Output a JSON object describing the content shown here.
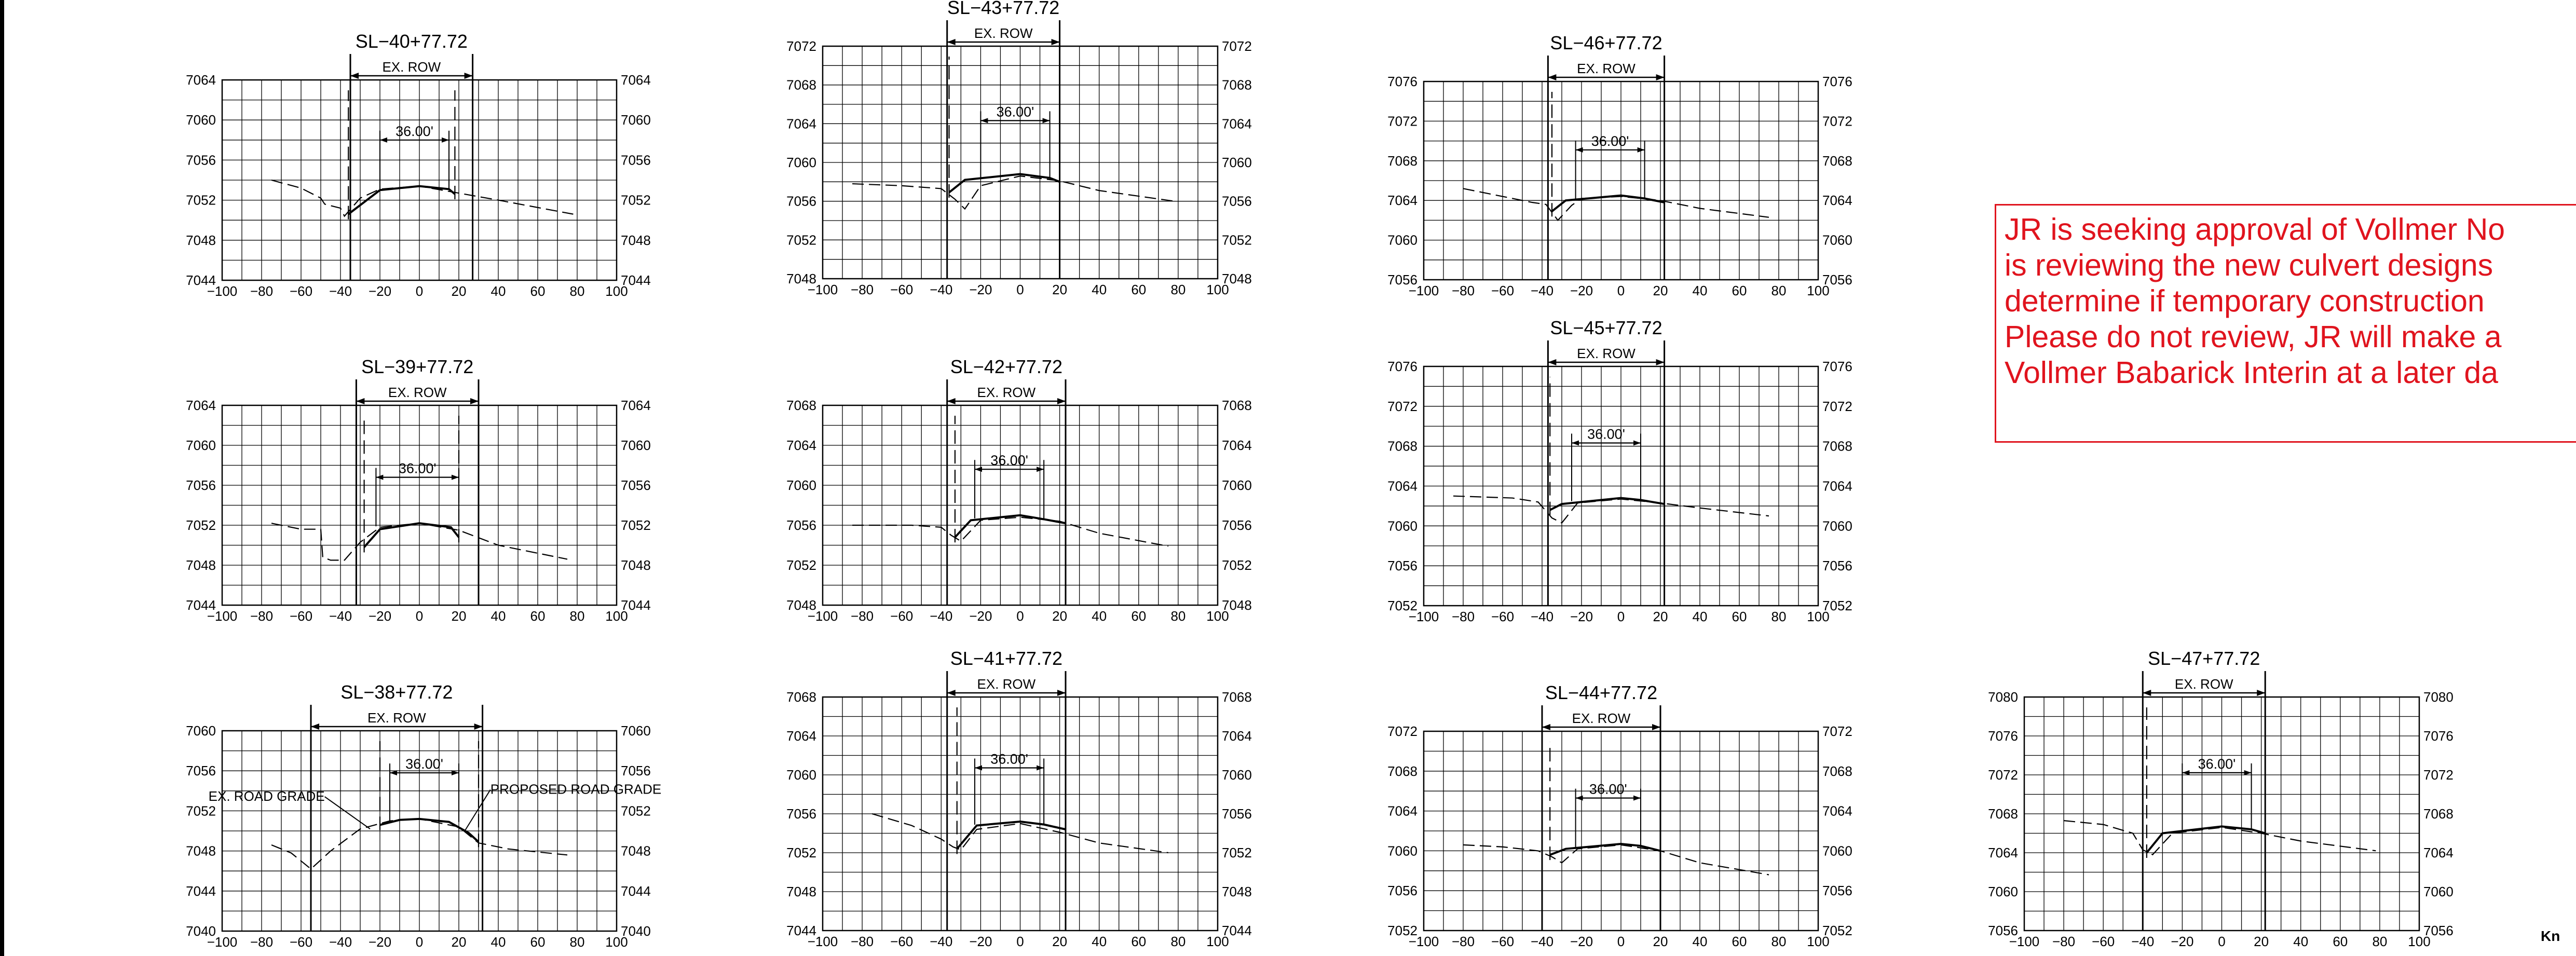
{
  "sheet": {
    "note_text": "JR is seeking approval of Vollmer No\nis reviewing the new culvert designs\ndetermine if temporary construction\nPlease do not review, JR will make a\nVollmer Babarick Interin at a later da",
    "corner_label": "Kn",
    "colors": {
      "line": "#000000",
      "grid": "#000000",
      "note": "#e0141e"
    }
  },
  "chart_data": [
    {
      "type": "line",
      "title": "SL−40+77.72",
      "row_label": "EX. ROW",
      "width_label": "36.00'",
      "xlim": [
        -100,
        100
      ],
      "ylim": [
        7044,
        7064
      ],
      "yticks": [
        7044,
        7048,
        7052,
        7056,
        7060,
        7064
      ],
      "xticks": [
        -100,
        -80,
        -60,
        -40,
        -20,
        0,
        20,
        40,
        60,
        80,
        100
      ],
      "row": [
        -35,
        27
      ],
      "width_mark": [
        -20,
        15
      ],
      "existing": [
        [
          -75,
          7054.0
        ],
        [
          -60,
          7053.2
        ],
        [
          -50,
          7052.2
        ],
        [
          -48,
          7051.6
        ],
        [
          -40,
          7051.2
        ],
        [
          -38,
          7050.4
        ],
        [
          -30,
          7052.2
        ],
        [
          -20,
          7053.1
        ],
        [
          0,
          7053.4
        ],
        [
          20,
          7052.7
        ],
        [
          40,
          7052.0
        ],
        [
          78,
          7050.6
        ]
      ],
      "proposed": [
        [
          -36,
          7050.6
        ],
        [
          -20,
          7053.0
        ],
        [
          0,
          7053.4
        ],
        [
          15,
          7053.1
        ],
        [
          18,
          7052.6
        ]
      ],
      "annotations": []
    },
    {
      "type": "line",
      "title": "SL−43+77.72",
      "row_label": "EX. ROW",
      "width_label": "36.00'",
      "xlim": [
        -100,
        100
      ],
      "ylim": [
        7048,
        7072
      ],
      "yticks": [
        7048,
        7052,
        7056,
        7060,
        7064,
        7068,
        7072
      ],
      "xticks": [
        -100,
        -80,
        -60,
        -40,
        -20,
        0,
        20,
        40,
        60,
        80,
        100
      ],
      "row": [
        -37,
        20
      ],
      "width_mark": [
        -20,
        15
      ],
      "existing": [
        [
          -85,
          7057.8
        ],
        [
          -60,
          7057.6
        ],
        [
          -40,
          7057.3
        ],
        [
          -33,
          7056.2
        ],
        [
          -28,
          7055.2
        ],
        [
          -20,
          7057.6
        ],
        [
          0,
          7058.6
        ],
        [
          20,
          7058.1
        ],
        [
          40,
          7057.1
        ],
        [
          78,
          7056.0
        ]
      ],
      "proposed": [
        [
          -36,
          7056.9
        ],
        [
          -28,
          7058.2
        ],
        [
          0,
          7058.8
        ],
        [
          15,
          7058.4
        ],
        [
          20,
          7058.0
        ]
      ],
      "annotations": []
    },
    {
      "type": "line",
      "title": "SL−46+77.72",
      "row_label": "EX. ROW",
      "width_label": "36.00'",
      "xlim": [
        -100,
        100
      ],
      "ylim": [
        7056,
        7076
      ],
      "yticks": [
        7056,
        7060,
        7064,
        7068,
        7072,
        7076
      ],
      "xticks": [
        -100,
        -80,
        -60,
        -40,
        -20,
        0,
        20,
        40,
        60,
        80,
        100
      ],
      "row": [
        -37,
        22
      ],
      "width_mark": [
        -23,
        12
      ],
      "existing": [
        [
          -80,
          7065.2
        ],
        [
          -60,
          7064.4
        ],
        [
          -45,
          7063.8
        ],
        [
          -38,
          7063.6
        ],
        [
          -32,
          7062.0
        ],
        [
          -25,
          7063.5
        ],
        [
          -20,
          7064.2
        ],
        [
          0,
          7064.4
        ],
        [
          20,
          7064.0
        ],
        [
          40,
          7063.2
        ],
        [
          75,
          7062.3
        ]
      ],
      "proposed": [
        [
          -35,
          7062.9
        ],
        [
          -28,
          7064.0
        ],
        [
          0,
          7064.5
        ],
        [
          12,
          7064.2
        ],
        [
          22,
          7063.8
        ]
      ],
      "annotations": []
    },
    {
      "type": "line",
      "title": "SL−39+77.72",
      "row_label": "EX. ROW",
      "width_label": "36.00'",
      "xlim": [
        -100,
        100
      ],
      "ylim": [
        7044,
        7064
      ],
      "yticks": [
        7044,
        7048,
        7052,
        7056,
        7060,
        7064
      ],
      "xticks": [
        -100,
        -80,
        -60,
        -40,
        -20,
        0,
        20,
        40,
        60,
        80,
        100
      ],
      "row": [
        -32,
        30
      ],
      "width_mark": [
        -22,
        20
      ],
      "existing": [
        [
          -75,
          7052.2
        ],
        [
          -60,
          7051.6
        ],
        [
          -50,
          7051.6
        ],
        [
          -49,
          7048.8
        ],
        [
          -45,
          7048.5
        ],
        [
          -38,
          7048.5
        ],
        [
          -30,
          7050.3
        ],
        [
          -20,
          7051.8
        ],
        [
          0,
          7052.2
        ],
        [
          20,
          7051.5
        ],
        [
          40,
          7050.0
        ],
        [
          75,
          7048.6
        ]
      ],
      "proposed": [
        [
          -28,
          7049.8
        ],
        [
          -20,
          7051.6
        ],
        [
          0,
          7052.2
        ],
        [
          16,
          7051.8
        ],
        [
          20,
          7050.8
        ]
      ],
      "annotations": []
    },
    {
      "type": "line",
      "title": "SL−42+77.72",
      "row_label": "EX. ROW",
      "width_label": "36.00'",
      "xlim": [
        -100,
        100
      ],
      "ylim": [
        7048,
        7068
      ],
      "yticks": [
        7048,
        7052,
        7056,
        7060,
        7064,
        7068
      ],
      "xticks": [
        -100,
        -80,
        -60,
        -40,
        -20,
        0,
        20,
        40,
        60,
        80,
        100
      ],
      "row": [
        -37,
        23
      ],
      "width_mark": [
        -23,
        12
      ],
      "existing": [
        [
          -85,
          7056.0
        ],
        [
          -55,
          7056.0
        ],
        [
          -40,
          7055.8
        ],
        [
          -35,
          7055.0
        ],
        [
          -30,
          7054.4
        ],
        [
          -20,
          7056.5
        ],
        [
          0,
          7056.8
        ],
        [
          20,
          7056.4
        ],
        [
          40,
          7055.2
        ],
        [
          75,
          7053.9
        ]
      ],
      "proposed": [
        [
          -33,
          7054.8
        ],
        [
          -25,
          7056.5
        ],
        [
          0,
          7057.0
        ],
        [
          12,
          7056.6
        ],
        [
          23,
          7056.2
        ]
      ],
      "annotations": []
    },
    {
      "type": "line",
      "title": "SL−45+77.72",
      "row_label": "EX. ROW",
      "width_label": "36.00'",
      "xlim": [
        -100,
        100
      ],
      "ylim": [
        7052,
        7076
      ],
      "yticks": [
        7052,
        7056,
        7060,
        7064,
        7068,
        7072,
        7076
      ],
      "xticks": [
        -100,
        -80,
        -60,
        -40,
        -20,
        0,
        20,
        40,
        60,
        80,
        100
      ],
      "row": [
        -37,
        22
      ],
      "width_mark": [
        -25,
        10
      ],
      "existing": [
        [
          -85,
          7063.0
        ],
        [
          -55,
          7062.8
        ],
        [
          -42,
          7062.4
        ],
        [
          -35,
          7060.8
        ],
        [
          -30,
          7060.3
        ],
        [
          -22,
          7062.3
        ],
        [
          0,
          7062.7
        ],
        [
          20,
          7062.3
        ],
        [
          40,
          7061.8
        ],
        [
          75,
          7061.0
        ]
      ],
      "proposed": [
        [
          -36,
          7061.6
        ],
        [
          -30,
          7062.2
        ],
        [
          0,
          7062.8
        ],
        [
          10,
          7062.6
        ],
        [
          22,
          7062.2
        ]
      ],
      "annotations": []
    },
    {
      "type": "line",
      "title": "SL−38+77.72",
      "row_label": "EX. ROW",
      "width_label": "36.00'",
      "xlim": [
        -100,
        100
      ],
      "ylim": [
        7040,
        7060
      ],
      "yticks": [
        7040,
        7044,
        7048,
        7052,
        7056,
        7060
      ],
      "xticks": [
        -100,
        -80,
        -60,
        -40,
        -20,
        0,
        20,
        40,
        60,
        80,
        100
      ],
      "row": [
        -55,
        32
      ],
      "width_mark": [
        -15,
        20
      ],
      "existing": [
        [
          -75,
          7048.6
        ],
        [
          -65,
          7047.8
        ],
        [
          -55,
          7046.2
        ],
        [
          -45,
          7048.0
        ],
        [
          -30,
          7050.2
        ],
        [
          -15,
          7051.0
        ],
        [
          0,
          7051.2
        ],
        [
          20,
          7050.4
        ],
        [
          30,
          7048.8
        ],
        [
          45,
          7048.2
        ],
        [
          75,
          7047.6
        ]
      ],
      "proposed": [
        [
          -20,
          7050.6
        ],
        [
          -10,
          7051.1
        ],
        [
          0,
          7051.2
        ],
        [
          15,
          7050.9
        ],
        [
          25,
          7049.8
        ],
        [
          30,
          7048.9
        ]
      ],
      "annotations": [
        {
          "text": "EX. ROAD GRADE",
          "x": -48,
          "y": 7053.0,
          "anchor": "end",
          "target": [
            -25,
            7050.2
          ]
        },
        {
          "text": "PROPOSED ROAD GRADE",
          "x": 36,
          "y": 7053.7,
          "anchor": "start",
          "target": [
            23,
            7050.0
          ]
        }
      ]
    },
    {
      "type": "line",
      "title": "SL−41+77.72",
      "row_label": "EX. ROW",
      "width_label": "36.00'",
      "xlim": [
        -100,
        100
      ],
      "ylim": [
        7044,
        7068
      ],
      "yticks": [
        7044,
        7048,
        7052,
        7056,
        7060,
        7064,
        7068
      ],
      "xticks": [
        -100,
        -80,
        -60,
        -40,
        -20,
        0,
        20,
        40,
        60,
        80,
        100
      ],
      "row": [
        -37,
        23
      ],
      "width_mark": [
        -23,
        12
      ],
      "existing": [
        [
          -75,
          7056.0
        ],
        [
          -55,
          7054.8
        ],
        [
          -40,
          7053.4
        ],
        [
          -34,
          7052.6
        ],
        [
          -30,
          7052.3
        ],
        [
          -22,
          7054.4
        ],
        [
          0,
          7055.0
        ],
        [
          20,
          7054.1
        ],
        [
          40,
          7053.0
        ],
        [
          75,
          7052.0
        ]
      ],
      "proposed": [
        [
          -32,
          7052.4
        ],
        [
          -22,
          7054.8
        ],
        [
          0,
          7055.2
        ],
        [
          12,
          7054.9
        ],
        [
          23,
          7054.4
        ]
      ],
      "annotations": []
    },
    {
      "type": "line",
      "title": "SL−44+77.72",
      "row_label": "EX. ROW",
      "width_label": "36.00'",
      "xlim": [
        -100,
        100
      ],
      "ylim": [
        7052,
        7072
      ],
      "yticks": [
        7052,
        7056,
        7060,
        7064,
        7068,
        7072
      ],
      "xticks": [
        -100,
        -80,
        -60,
        -40,
        -20,
        0,
        20,
        40,
        60,
        80,
        100
      ],
      "row": [
        -40,
        20
      ],
      "width_mark": [
        -23,
        10
      ],
      "existing": [
        [
          -80,
          7060.6
        ],
        [
          -60,
          7060.4
        ],
        [
          -42,
          7060.0
        ],
        [
          -35,
          7059.4
        ],
        [
          -30,
          7058.8
        ],
        [
          -22,
          7060.2
        ],
        [
          0,
          7060.6
        ],
        [
          20,
          7060.0
        ],
        [
          40,
          7058.8
        ],
        [
          75,
          7057.6
        ]
      ],
      "proposed": [
        [
          -36,
          7059.6
        ],
        [
          -28,
          7060.2
        ],
        [
          0,
          7060.7
        ],
        [
          10,
          7060.5
        ],
        [
          20,
          7060.0
        ]
      ],
      "annotations": []
    },
    {
      "type": "line",
      "title": "SL−47+77.72",
      "row_label": "EX. ROW",
      "width_label": "36.00'",
      "xlim": [
        -100,
        100
      ],
      "ylim": [
        7056,
        7080
      ],
      "yticks": [
        7056,
        7060,
        7064,
        7068,
        7072,
        7076,
        7080
      ],
      "xticks": [
        -100,
        -80,
        -60,
        -40,
        -20,
        0,
        20,
        40,
        60,
        80,
        100
      ],
      "row": [
        -40,
        22
      ],
      "width_mark": [
        -20,
        15
      ],
      "existing": [
        [
          -80,
          7067.3
        ],
        [
          -60,
          7066.9
        ],
        [
          -45,
          7066.0
        ],
        [
          -40,
          7064.3
        ],
        [
          -35,
          7063.8
        ],
        [
          -25,
          7066.0
        ],
        [
          0,
          7066.6
        ],
        [
          20,
          7066.0
        ],
        [
          40,
          7065.2
        ],
        [
          78,
          7064.2
        ]
      ],
      "proposed": [
        [
          -38,
          7064.0
        ],
        [
          -30,
          7066.0
        ],
        [
          0,
          7066.7
        ],
        [
          15,
          7066.4
        ],
        [
          22,
          7066.0
        ]
      ],
      "annotations": []
    }
  ]
}
